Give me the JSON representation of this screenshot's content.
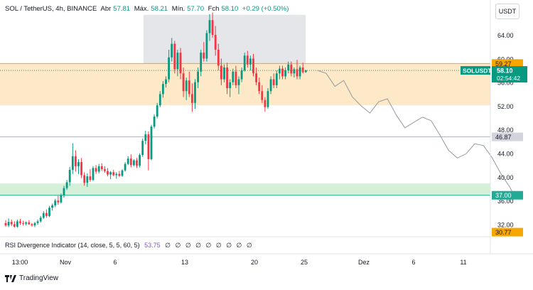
{
  "header": {
    "symbol": "SOL / TetherUS, 4h, BINANCE",
    "open_label": "Abr",
    "open": "57.81",
    "high_label": "Máx.",
    "high": "58.21",
    "low_label": "Mín.",
    "low": "57.70",
    "close_label": "Fch",
    "close": "58.10",
    "change": "+0.29 (+0.50%)"
  },
  "currency_button": "USDT",
  "price_axis": {
    "ticks": [
      "64.00",
      "60.00",
      "56.00",
      "52.00",
      "48.00",
      "44.00",
      "40.00",
      "36.00",
      "32.00"
    ],
    "labels": {
      "resistance": "59.27",
      "symbol_tag": "SOLUSDT",
      "last_price": "58.10",
      "countdown": "02:54:42",
      "level_a": "46.87",
      "support": "37.00",
      "level_b": "30.77"
    }
  },
  "time_axis": [
    "13:00",
    "Nov",
    "6",
    "13",
    "20",
    "25",
    "Dez",
    "6",
    "11"
  ],
  "rsi": {
    "label": "RSI Divergence Indicator (14, close, 5, 5, 60, 5)",
    "value": "53.75",
    "zeros": "∅ ∅ ∅ ∅ ∅ ∅ ∅ ∅ ∅"
  },
  "footer": {
    "brand": "TradingView"
  },
  "colors": {
    "up": "#089981",
    "down": "#f23645",
    "resistance": "#f7a600",
    "support": "#22ab94",
    "last_price_bg": "#089981",
    "gray_label_bg": "#d1d4dc",
    "zone_orange": "#fde9c8",
    "zone_green": "#d4f0d8",
    "zone_gray": "#e5e6ea"
  },
  "chart_data": {
    "type": "candlestick",
    "interval": "4h",
    "ylim": [
      30,
      70
    ],
    "zones": [
      {
        "name": "resistance-zone",
        "from": 52.2,
        "to": 59.27
      },
      {
        "name": "support-zone",
        "from": 37.0,
        "to": 39.0
      },
      {
        "name": "top-box",
        "from": 59.27,
        "to": 67.5
      }
    ],
    "lines": [
      {
        "name": "resistance-line",
        "value": 59.27
      },
      {
        "name": "level-46-87",
        "value": 46.87
      },
      {
        "name": "support-line",
        "value": 37.0
      }
    ],
    "candles": [
      [
        32.3,
        32.8,
        31.7,
        31.9
      ],
      [
        31.9,
        33.1,
        31.6,
        32.5
      ],
      [
        32.5,
        32.9,
        31.8,
        32.1
      ],
      [
        32.1,
        32.6,
        31.5,
        31.7
      ],
      [
        31.7,
        32.9,
        31.5,
        32.6
      ],
      [
        32.6,
        33.0,
        32.0,
        32.3
      ],
      [
        32.3,
        32.7,
        31.9,
        32.2
      ],
      [
        32.2,
        32.6,
        31.9,
        32.4
      ],
      [
        32.4,
        32.8,
        32.0,
        32.1
      ],
      [
        32.1,
        32.3,
        31.7,
        31.9
      ],
      [
        31.9,
        32.5,
        31.6,
        32.3
      ],
      [
        32.3,
        32.9,
        32.0,
        32.6
      ],
      [
        32.6,
        33.5,
        32.4,
        33.2
      ],
      [
        33.2,
        34.3,
        33.0,
        34.0
      ],
      [
        34.0,
        34.6,
        33.2,
        33.5
      ],
      [
        33.5,
        35.2,
        33.3,
        34.9
      ],
      [
        34.9,
        35.6,
        34.4,
        35.3
      ],
      [
        35.3,
        36.4,
        35.0,
        36.1
      ],
      [
        36.1,
        36.9,
        35.4,
        35.8
      ],
      [
        35.8,
        37.3,
        35.6,
        37.0
      ],
      [
        37.0,
        38.6,
        36.6,
        38.2
      ],
      [
        38.2,
        39.6,
        37.9,
        39.2
      ],
      [
        39.2,
        41.8,
        38.6,
        41.3
      ],
      [
        41.3,
        45.8,
        40.6,
        43.6
      ],
      [
        43.6,
        44.6,
        41.0,
        41.9
      ],
      [
        41.9,
        43.1,
        40.6,
        42.6
      ],
      [
        42.6,
        43.3,
        39.9,
        40.4
      ],
      [
        40.4,
        40.9,
        38.6,
        39.1
      ],
      [
        39.1,
        40.7,
        38.4,
        40.2
      ],
      [
        40.2,
        41.4,
        39.3,
        39.6
      ],
      [
        39.6,
        41.9,
        39.4,
        41.6
      ],
      [
        41.6,
        42.1,
        40.6,
        41.0
      ],
      [
        41.0,
        42.3,
        40.7,
        41.9
      ],
      [
        41.9,
        42.4,
        41.1,
        41.4
      ],
      [
        41.4,
        41.9,
        40.8,
        41.1
      ],
      [
        41.1,
        41.6,
        40.2,
        40.5
      ],
      [
        40.5,
        41.1,
        39.7,
        40.9
      ],
      [
        40.9,
        41.3,
        40.2,
        40.4
      ],
      [
        40.4,
        40.9,
        39.8,
        40.6
      ],
      [
        40.6,
        41.1,
        40.1,
        40.3
      ],
      [
        40.3,
        41.4,
        40.1,
        41.2
      ],
      [
        41.2,
        42.6,
        41.0,
        42.3
      ],
      [
        42.3,
        43.6,
        42.1,
        43.2
      ],
      [
        43.2,
        43.9,
        41.7,
        42.1
      ],
      [
        42.1,
        43.1,
        41.9,
        42.9
      ],
      [
        42.9,
        43.3,
        41.6,
        42.0
      ],
      [
        42.0,
        44.1,
        41.7,
        43.8
      ],
      [
        43.8,
        46.6,
        43.5,
        46.2
      ],
      [
        46.2,
        47.9,
        45.6,
        47.3
      ],
      [
        47.3,
        47.8,
        41.2,
        43.1
      ],
      [
        43.1,
        48.9,
        42.9,
        48.6
      ],
      [
        48.6,
        50.7,
        48.3,
        50.3
      ],
      [
        50.3,
        52.6,
        50.0,
        52.2
      ],
      [
        52.2,
        54.6,
        51.9,
        54.1
      ],
      [
        54.1,
        56.3,
        53.5,
        55.8
      ],
      [
        55.8,
        57.1,
        55.2,
        56.6
      ],
      [
        56.6,
        61.6,
        56.1,
        60.3
      ],
      [
        60.3,
        63.6,
        59.6,
        62.6
      ],
      [
        62.6,
        63.1,
        57.6,
        58.3
      ],
      [
        58.3,
        61.6,
        57.1,
        61.1
      ],
      [
        61.1,
        61.9,
        56.6,
        57.6
      ],
      [
        57.6,
        58.6,
        53.6,
        54.6
      ],
      [
        54.6,
        56.9,
        53.1,
        56.4
      ],
      [
        56.4,
        57.9,
        53.6,
        54.1
      ],
      [
        54.1,
        55.9,
        51.1,
        52.6
      ],
      [
        52.6,
        56.6,
        51.6,
        56.1
      ],
      [
        56.1,
        58.6,
        55.1,
        57.9
      ],
      [
        57.9,
        61.6,
        57.1,
        61.1
      ],
      [
        61.1,
        62.9,
        59.6,
        60.1
      ],
      [
        60.1,
        64.9,
        59.6,
        64.4
      ],
      [
        64.4,
        67.6,
        63.1,
        66.6
      ],
      [
        66.6,
        67.9,
        63.6,
        64.1
      ],
      [
        64.1,
        65.6,
        60.6,
        61.6
      ],
      [
        61.6,
        62.6,
        58.1,
        58.9
      ],
      [
        58.9,
        60.1,
        55.6,
        56.6
      ],
      [
        56.6,
        59.1,
        56.1,
        58.6
      ],
      [
        58.6,
        59.4,
        54.1,
        55.1
      ],
      [
        55.1,
        56.6,
        53.6,
        56.1
      ],
      [
        56.1,
        58.4,
        55.6,
        57.9
      ],
      [
        57.9,
        58.9,
        55.1,
        55.6
      ],
      [
        55.6,
        57.1,
        54.1,
        56.6
      ],
      [
        56.6,
        58.6,
        56.1,
        58.1
      ],
      [
        58.1,
        61.1,
        57.9,
        60.6
      ],
      [
        60.6,
        61.4,
        58.6,
        59.1
      ],
      [
        59.1,
        60.6,
        58.1,
        60.1
      ],
      [
        60.1,
        60.9,
        57.1,
        57.6
      ],
      [
        57.6,
        58.6,
        55.6,
        56.1
      ],
      [
        56.1,
        56.9,
        54.1,
        54.6
      ],
      [
        54.6,
        55.6,
        52.6,
        53.1
      ],
      [
        53.1,
        53.6,
        51.1,
        51.9
      ],
      [
        51.9,
        55.1,
        51.6,
        54.6
      ],
      [
        54.6,
        57.1,
        54.1,
        56.6
      ],
      [
        56.6,
        57.6,
        55.1,
        55.6
      ],
      [
        55.6,
        58.1,
        55.1,
        57.6
      ],
      [
        57.6,
        58.9,
        56.6,
        58.4
      ],
      [
        58.4,
        58.9,
        56.6,
        57.1
      ],
      [
        57.1,
        58.6,
        56.6,
        58.1
      ],
      [
        58.1,
        59.6,
        57.6,
        59.1
      ],
      [
        59.1,
        59.6,
        57.1,
        57.6
      ],
      [
        57.6,
        58.6,
        56.9,
        58.3
      ],
      [
        58.3,
        59.9,
        56.6,
        57.1
      ],
      [
        57.1,
        58.9,
        56.6,
        58.6
      ],
      [
        58.6,
        59.4,
        57.6,
        57.8
      ],
      [
        57.81,
        58.21,
        57.7,
        58.1
      ]
    ],
    "projection_path": [
      [
        107,
        58.1
      ],
      [
        110,
        57.6
      ],
      [
        113,
        55.4
      ],
      [
        116,
        56.4
      ],
      [
        119,
        53.6
      ],
      [
        122,
        52.1
      ],
      [
        125,
        50.9
      ],
      [
        128,
        52.8
      ],
      [
        131,
        53.3
      ],
      [
        134,
        50.6
      ],
      [
        137,
        48.4
      ],
      [
        140,
        49.3
      ],
      [
        143,
        50.2
      ],
      [
        146,
        49.6
      ],
      [
        149,
        47.2
      ],
      [
        152,
        44.6
      ],
      [
        155,
        43.3
      ],
      [
        158,
        44.0
      ],
      [
        161,
        45.7
      ],
      [
        164,
        45.4
      ],
      [
        167,
        43.3
      ],
      [
        170,
        40.6
      ],
      [
        173,
        38.4
      ],
      [
        174.5,
        37.0
      ]
    ]
  }
}
